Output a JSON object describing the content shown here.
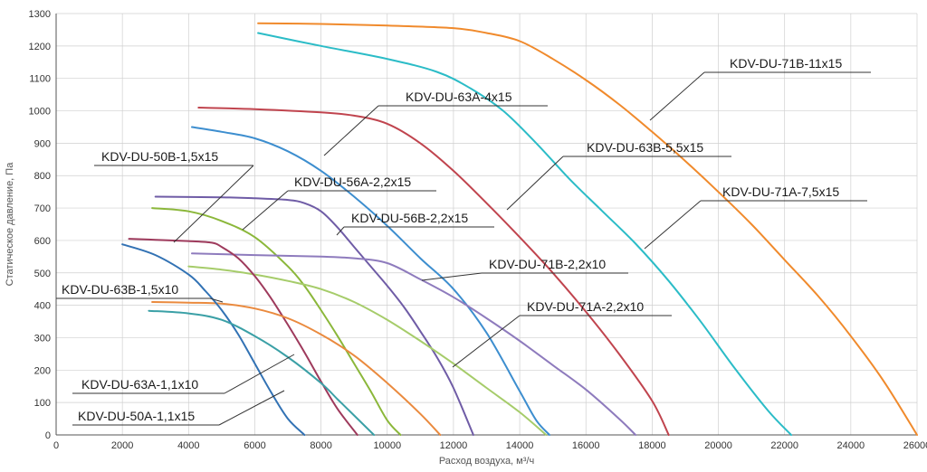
{
  "chart_data": {
    "type": "line",
    "xlabel": "Расход воздуха, м³/ч",
    "ylabel": "Статическое давление, Па",
    "xlim": [
      0,
      26000
    ],
    "ylim": [
      0,
      1300
    ],
    "x_ticks": [
      0,
      2000,
      4000,
      6000,
      8000,
      10000,
      12000,
      14000,
      16000,
      18000,
      20000,
      22000,
      24000,
      26000
    ],
    "y_ticks": [
      0,
      100,
      200,
      300,
      400,
      500,
      600,
      700,
      800,
      900,
      1000,
      1100,
      1200,
      1300
    ],
    "grid": true,
    "series": [
      {
        "name": "KDV-DU-71B-11x15",
        "color": "#f08a2c",
        "x": [
          6100,
          8000,
          10000,
          12000,
          13000,
          14000,
          15000,
          16000,
          17000,
          18000,
          19000,
          20000,
          21000,
          22000,
          23000,
          24000,
          25000,
          26000
        ],
        "y": [
          1270,
          1268,
          1263,
          1255,
          1240,
          1215,
          1160,
          1095,
          1020,
          935,
          845,
          750,
          650,
          540,
          430,
          305,
          165,
          0
        ]
      },
      {
        "name": "KDV-DU-71A-7,5x15",
        "color": "#2bbcc7",
        "x": [
          6100,
          8000,
          10000,
          11500,
          12500,
          13500,
          14500,
          15500,
          16500,
          17500,
          18500,
          19500,
          20500,
          21500,
          22200
        ],
        "y": [
          1240,
          1200,
          1160,
          1120,
          1070,
          1000,
          900,
          790,
          690,
          590,
          475,
          345,
          205,
          75,
          0
        ]
      },
      {
        "name": "KDV-DU-63B-5,5x15",
        "color": "#c0444e",
        "x": [
          4300,
          6000,
          8000,
          9000,
          10000,
          11000,
          12000,
          13000,
          14000,
          15000,
          16000,
          17000,
          18000,
          18500
        ],
        "y": [
          1010,
          1005,
          995,
          985,
          960,
          900,
          815,
          715,
          610,
          500,
          380,
          250,
          105,
          0
        ]
      },
      {
        "name": "KDV-DU-63A-4x15",
        "color": "#3d8ecf",
        "x": [
          4100,
          5000,
          6000,
          7000,
          8000,
          9000,
          10000,
          11000,
          12000,
          13000,
          14000,
          14500,
          14900
        ],
        "y": [
          950,
          935,
          915,
          875,
          815,
          735,
          645,
          545,
          450,
          315,
          135,
          45,
          0
        ]
      },
      {
        "name": "KDV-DU-56B-2,2x15",
        "color": "#6f5ca6",
        "x": [
          3000,
          5000,
          6000,
          7000,
          7500,
          8000,
          8500,
          9000,
          9500,
          10000,
          10500,
          11000,
          11500,
          12000,
          12600
        ],
        "y": [
          735,
          733,
          730,
          725,
          715,
          690,
          640,
          580,
          520,
          460,
          395,
          320,
          240,
          145,
          0
        ]
      },
      {
        "name": "KDV-DU-56A-2,2x15",
        "color": "#8bb73a",
        "x": [
          2900,
          4000,
          5000,
          6000,
          7000,
          7500,
          8000,
          8500,
          9000,
          9500,
          10000,
          10400
        ],
        "y": [
          700,
          690,
          660,
          610,
          520,
          460,
          385,
          305,
          220,
          135,
          45,
          0
        ]
      },
      {
        "name": "KDV-DU-71B-2,2x10",
        "color": "#8e7bbd",
        "x": [
          4100,
          6000,
          8000,
          9000,
          10000,
          11000,
          12000,
          13000,
          14000,
          15000,
          16000,
          17000,
          17500
        ],
        "y": [
          560,
          555,
          550,
          545,
          530,
          480,
          425,
          360,
          290,
          215,
          140,
          50,
          0
        ]
      },
      {
        "name": "KDV-DU-71A-2,2x10",
        "color": "#a6cc6a",
        "x": [
          4000,
          5000,
          6000,
          7000,
          8000,
          9000,
          10000,
          11000,
          12000,
          13000,
          14000,
          14800
        ],
        "y": [
          520,
          510,
          495,
          475,
          450,
          410,
          355,
          290,
          220,
          145,
          70,
          0
        ]
      },
      {
        "name": "KDV-DU-50B-1,5x15",
        "color": "#9e3a5c",
        "x": [
          2200,
          3000,
          4000,
          4700,
          5000,
          5500,
          6000,
          6500,
          7000,
          7500,
          8000,
          8500,
          9100
        ],
        "y": [
          605,
          602,
          598,
          593,
          580,
          545,
          490,
          420,
          340,
          255,
          165,
          80,
          0
        ]
      },
      {
        "name": "KDV-DU-63B-1,5x10",
        "color": "#ea8a3e",
        "x": [
          2900,
          4000,
          5000,
          6000,
          7000,
          8000,
          9000,
          10000,
          11000,
          11600
        ],
        "y": [
          410,
          408,
          405,
          390,
          360,
          310,
          245,
          160,
          65,
          0
        ]
      },
      {
        "name": "KDV-DU-50A-1,1x15",
        "color": "#3272b4",
        "x": [
          2000,
          3000,
          4000,
          4500,
          5000,
          5500,
          6000,
          6500,
          7000,
          7500
        ],
        "y": [
          588,
          555,
          495,
          445,
          385,
          310,
          220,
          130,
          50,
          0
        ]
      },
      {
        "name": "KDV-DU-63A-1,1x10",
        "color": "#3ba0a6",
        "x": [
          2800,
          4000,
          5000,
          6000,
          7000,
          8000,
          8500,
          9000,
          9600
        ],
        "y": [
          383,
          375,
          355,
          305,
          240,
          160,
          110,
          60,
          0
        ]
      }
    ]
  },
  "labels": [
    {
      "text": "KDV-DU-71B-11x15"
    },
    {
      "text": "KDV-DU-63A-4x15"
    },
    {
      "text": "KDV-DU-63B-5,5x15"
    },
    {
      "text": "KDV-DU-71A-7,5x15"
    },
    {
      "text": "KDV-DU-50B-1,5x15"
    },
    {
      "text": "KDV-DU-56A-2,2x15"
    },
    {
      "text": "KDV-DU-56B-2,2x15"
    },
    {
      "text": "KDV-DU-71B-2,2x10"
    },
    {
      "text": "KDV-DU-63B-1,5x10"
    },
    {
      "text": "KDV-DU-71A-2,2x10"
    },
    {
      "text": "KDV-DU-63A-1,1x10"
    },
    {
      "text": "KDV-DU-50A-1,1x15"
    }
  ]
}
